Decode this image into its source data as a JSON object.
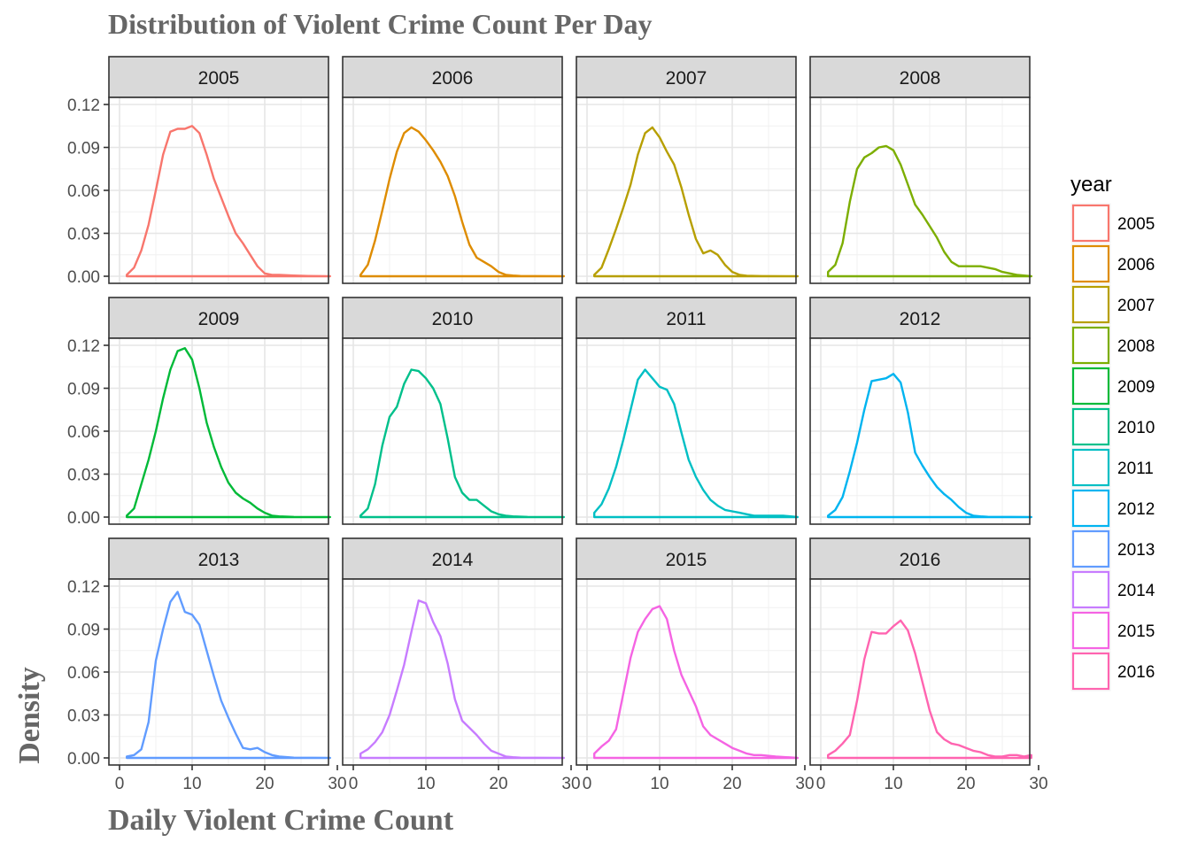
{
  "chart_data": {
    "type": "area",
    "title": "Distribution of Violent Crime Count Per Day",
    "xlabel": "Daily Violent Crime Count",
    "ylabel": "Density",
    "xlim": [
      0,
      30
    ],
    "ylim": [
      0,
      0.12
    ],
    "x_ticks": [
      0,
      10,
      20,
      30
    ],
    "x_tick_labels": [
      "0",
      "10",
      "20",
      "30"
    ],
    "y_ticks": [
      0,
      0.03,
      0.06,
      0.09,
      0.12
    ],
    "y_tick_labels": [
      "0.00",
      "0.03",
      "0.06",
      "0.09",
      "0.12"
    ],
    "grid": true,
    "legend": {
      "title": "year",
      "position": "right"
    },
    "facet_columns": 4,
    "series": [
      {
        "name": "2005",
        "color": "#F8766D",
        "x": [
          1,
          2,
          3,
          4,
          5,
          6,
          7,
          8,
          9,
          10,
          11,
          12,
          13,
          14,
          15,
          16,
          17,
          18,
          19,
          20,
          21,
          22,
          24,
          26,
          29
        ],
        "y": [
          0.001,
          0.006,
          0.018,
          0.036,
          0.06,
          0.085,
          0.101,
          0.103,
          0.103,
          0.105,
          0.1,
          0.085,
          0.068,
          0.055,
          0.042,
          0.03,
          0.023,
          0.015,
          0.007,
          0.002,
          0.001,
          0.001,
          0.0005,
          0.0002,
          0
        ]
      },
      {
        "name": "2006",
        "color": "#DE8C00",
        "x": [
          1,
          2,
          3,
          4,
          5,
          6,
          7,
          8,
          9,
          10,
          11,
          12,
          13,
          14,
          15,
          16,
          17,
          18,
          19,
          20,
          21,
          22,
          23,
          25,
          29
        ],
        "y": [
          0.001,
          0.008,
          0.025,
          0.046,
          0.068,
          0.087,
          0.1,
          0.104,
          0.101,
          0.095,
          0.088,
          0.08,
          0.07,
          0.056,
          0.038,
          0.022,
          0.013,
          0.01,
          0.007,
          0.003,
          0.001,
          0.0005,
          0.0002,
          0.0001,
          0
        ]
      },
      {
        "name": "2007",
        "color": "#B79F00",
        "x": [
          1,
          2,
          3,
          4,
          5,
          6,
          7,
          8,
          9,
          10,
          11,
          12,
          13,
          14,
          15,
          16,
          17,
          18,
          19,
          20,
          21,
          22,
          24,
          29
        ],
        "y": [
          0.001,
          0.006,
          0.019,
          0.033,
          0.048,
          0.064,
          0.085,
          0.1,
          0.104,
          0.097,
          0.087,
          0.078,
          0.062,
          0.043,
          0.026,
          0.016,
          0.018,
          0.015,
          0.008,
          0.003,
          0.001,
          0.0003,
          0.0001,
          0
        ]
      },
      {
        "name": "2008",
        "color": "#7CAE00",
        "x": [
          1,
          2,
          3,
          4,
          5,
          6,
          7,
          8,
          9,
          10,
          11,
          12,
          13,
          14,
          15,
          16,
          17,
          18,
          19,
          20,
          22,
          24,
          25,
          27,
          29
        ],
        "y": [
          0.003,
          0.008,
          0.023,
          0.052,
          0.075,
          0.083,
          0.086,
          0.09,
          0.091,
          0.088,
          0.078,
          0.064,
          0.05,
          0.043,
          0.035,
          0.027,
          0.017,
          0.01,
          0.007,
          0.007,
          0.007,
          0.005,
          0.003,
          0.001,
          0
        ]
      },
      {
        "name": "2009",
        "color": "#00BA38",
        "x": [
          1,
          2,
          3,
          4,
          5,
          6,
          7,
          8,
          9,
          10,
          11,
          12,
          13,
          14,
          15,
          16,
          17,
          18,
          19,
          20,
          21,
          22,
          24,
          29
        ],
        "y": [
          0.001,
          0.006,
          0.023,
          0.04,
          0.06,
          0.083,
          0.103,
          0.116,
          0.118,
          0.11,
          0.09,
          0.066,
          0.049,
          0.035,
          0.024,
          0.017,
          0.013,
          0.01,
          0.006,
          0.003,
          0.001,
          0.0005,
          0.0001,
          0
        ]
      },
      {
        "name": "2010",
        "color": "#00C08B",
        "x": [
          1,
          2,
          3,
          4,
          5,
          6,
          7,
          8,
          9,
          10,
          11,
          12,
          13,
          14,
          15,
          16,
          17,
          18,
          19,
          20,
          21,
          22,
          24,
          29
        ],
        "y": [
          0.001,
          0.006,
          0.023,
          0.05,
          0.07,
          0.077,
          0.093,
          0.103,
          0.102,
          0.097,
          0.09,
          0.079,
          0.055,
          0.028,
          0.017,
          0.012,
          0.012,
          0.008,
          0.004,
          0.002,
          0.001,
          0.0005,
          0.0001,
          0
        ]
      },
      {
        "name": "2011",
        "color": "#00BFC4",
        "x": [
          1,
          2,
          3,
          4,
          5,
          6,
          7,
          8,
          9,
          10,
          11,
          12,
          13,
          14,
          15,
          16,
          17,
          18,
          19,
          20,
          21,
          22,
          23,
          25,
          27,
          29
        ],
        "y": [
          0.003,
          0.009,
          0.02,
          0.035,
          0.054,
          0.075,
          0.096,
          0.103,
          0.097,
          0.091,
          0.089,
          0.079,
          0.059,
          0.04,
          0.028,
          0.019,
          0.012,
          0.008,
          0.005,
          0.004,
          0.003,
          0.002,
          0.001,
          0.001,
          0.001,
          0
        ]
      },
      {
        "name": "2012",
        "color": "#00B4F0",
        "x": [
          1,
          2,
          3,
          4,
          5,
          6,
          7,
          8,
          9,
          10,
          11,
          12,
          13,
          14,
          15,
          16,
          17,
          18,
          19,
          20,
          21,
          22,
          23,
          25,
          29
        ],
        "y": [
          0.001,
          0.005,
          0.014,
          0.032,
          0.052,
          0.075,
          0.095,
          0.096,
          0.097,
          0.1,
          0.094,
          0.073,
          0.045,
          0.036,
          0.028,
          0.021,
          0.016,
          0.012,
          0.007,
          0.003,
          0.001,
          0.0005,
          0.0002,
          0.0001,
          0
        ]
      },
      {
        "name": "2013",
        "color": "#619CFF",
        "x": [
          1,
          2,
          3,
          4,
          5,
          6,
          7,
          8,
          9,
          10,
          11,
          12,
          13,
          14,
          15,
          16,
          17,
          18,
          19,
          20,
          21,
          22,
          24,
          29
        ],
        "y": [
          0.001,
          0.002,
          0.006,
          0.025,
          0.068,
          0.09,
          0.109,
          0.116,
          0.102,
          0.1,
          0.093,
          0.075,
          0.057,
          0.04,
          0.028,
          0.017,
          0.007,
          0.006,
          0.007,
          0.004,
          0.002,
          0.001,
          0.0002,
          0
        ]
      },
      {
        "name": "2014",
        "color": "#C77CFF",
        "x": [
          1,
          2,
          3,
          4,
          5,
          6,
          7,
          8,
          9,
          10,
          11,
          12,
          13,
          14,
          15,
          16,
          17,
          18,
          19,
          20,
          21,
          22,
          23,
          25,
          29
        ],
        "y": [
          0.003,
          0.006,
          0.011,
          0.018,
          0.03,
          0.047,
          0.065,
          0.088,
          0.11,
          0.108,
          0.095,
          0.085,
          0.066,
          0.041,
          0.026,
          0.021,
          0.016,
          0.01,
          0.005,
          0.003,
          0.001,
          0.0005,
          0.0002,
          0.0001,
          0
        ]
      },
      {
        "name": "2015",
        "color": "#F564E3",
        "x": [
          1,
          2,
          3,
          4,
          5,
          6,
          7,
          8,
          9,
          10,
          11,
          12,
          13,
          14,
          15,
          16,
          17,
          18,
          19,
          20,
          21,
          22,
          23,
          24,
          26,
          29
        ],
        "y": [
          0.003,
          0.008,
          0.012,
          0.02,
          0.045,
          0.07,
          0.088,
          0.097,
          0.104,
          0.106,
          0.097,
          0.075,
          0.058,
          0.047,
          0.036,
          0.022,
          0.016,
          0.013,
          0.01,
          0.007,
          0.005,
          0.003,
          0.002,
          0.002,
          0.001,
          0
        ]
      },
      {
        "name": "2016",
        "color": "#FF64B0",
        "x": [
          1,
          2,
          3,
          4,
          5,
          6,
          7,
          8,
          9,
          10,
          11,
          12,
          13,
          14,
          15,
          16,
          17,
          18,
          19,
          20,
          21,
          22,
          23,
          24,
          25,
          26,
          27,
          28,
          29
        ],
        "y": [
          0.002,
          0.005,
          0.01,
          0.016,
          0.04,
          0.069,
          0.088,
          0.087,
          0.087,
          0.092,
          0.096,
          0.089,
          0.073,
          0.053,
          0.033,
          0.018,
          0.013,
          0.01,
          0.009,
          0.007,
          0.005,
          0.004,
          0.002,
          0.001,
          0.001,
          0.002,
          0.002,
          0.001,
          0.002
        ]
      }
    ]
  }
}
